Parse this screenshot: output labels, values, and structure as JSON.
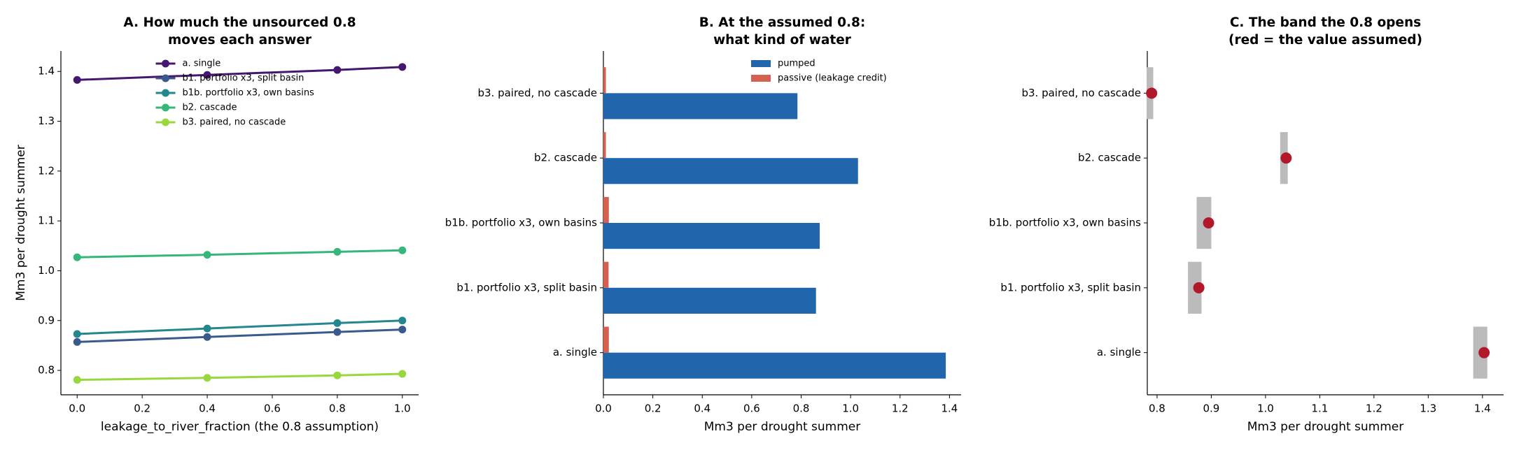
{
  "chart_data": [
    {
      "type": "line",
      "title": "A. How much the unsourced 0.8\nmoves each answer",
      "xlabel": "leakage_to_river_fraction (the 0.8 assumption)",
      "ylabel": "Mm3 per drought summer",
      "x": [
        0,
        0.4,
        0.8,
        1.0
      ],
      "series": [
        {
          "name": "a. single",
          "color": "#45186f",
          "values": [
            1.383,
            1.393,
            1.403,
            1.409
          ]
        },
        {
          "name": "b1. portfolio x3, split basin",
          "color": "#3a5a8c",
          "values": [
            0.857,
            0.867,
            0.877,
            0.882
          ]
        },
        {
          "name": "b1b. portfolio x3, own basins",
          "color": "#23878d",
          "values": [
            0.873,
            0.884,
            0.895,
            0.9
          ]
        },
        {
          "name": "b2. cascade",
          "color": "#35b779",
          "values": [
            1.027,
            1.032,
            1.038,
            1.041
          ]
        },
        {
          "name": "b3. paired, no cascade",
          "color": "#98d83e",
          "values": [
            0.781,
            0.785,
            0.79,
            0.793
          ]
        }
      ],
      "xlim": [
        -0.05,
        1.05
      ],
      "xticks": [
        {
          "value": 0,
          "label": "0.0"
        },
        0.2,
        0.4,
        0.6,
        0.8,
        {
          "value": 1.0,
          "label": "1.0"
        }
      ],
      "ylim": [
        0.751,
        1.441
      ],
      "yticks": [
        0.8,
        0.9,
        {
          "value": 1.0,
          "label": "1.0"
        },
        1.1,
        1.2,
        1.3,
        1.4
      ],
      "legend": "upper center"
    },
    {
      "type": "barh",
      "title": "B. At the assumed 0.8:\nwhat kind of water",
      "xlabel": "Mm3 per drought summer",
      "categories": [
        "a. single",
        "b1. portfolio x3, split basin",
        "b1b. portfolio x3, own basins",
        "b2. cascade",
        "b3. paired, no cascade"
      ],
      "series": [
        {
          "name": "pumped",
          "color": "#2166ac",
          "values": [
            1.385,
            0.86,
            0.875,
            1.03,
            0.785
          ]
        },
        {
          "name": "passive (leakage credit)",
          "color": "#d6604d",
          "values": [
            0.022,
            0.021,
            0.022,
            0.01,
            0.01
          ]
        }
      ],
      "xlim": [
        0,
        1.447
      ],
      "xticks": [
        {
          "value": 0,
          "label": "0.0"
        },
        0.2,
        0.4,
        0.6,
        0.8,
        {
          "value": 1.0,
          "label": "1.0"
        },
        1.2,
        1.4
      ],
      "legend": "upper right"
    },
    {
      "type": "dot",
      "title": "C. The band the 0.8 opens\n(red = the value assumed)",
      "xlabel": "Mm3 per drought summer",
      "categories": [
        "a. single",
        "b1. portfolio x3, split basin",
        "b1b. portfolio x3, own basins",
        "b2. cascade",
        "b3. paired, no cascade"
      ],
      "values": [
        1.403,
        0.877,
        0.895,
        1.038,
        0.79
      ],
      "band_low": [
        1.383,
        0.857,
        0.873,
        1.027,
        0.781
      ],
      "band_high": [
        1.409,
        0.882,
        0.9,
        1.041,
        0.793
      ],
      "point_color": "#b2182b",
      "band_color": "#bbbbbb",
      "xlim": [
        0.782,
        1.439
      ],
      "xticks": [
        0.8,
        0.9,
        {
          "value": 1.0,
          "label": "1.0"
        },
        1.1,
        1.2,
        1.3,
        1.4
      ]
    }
  ]
}
